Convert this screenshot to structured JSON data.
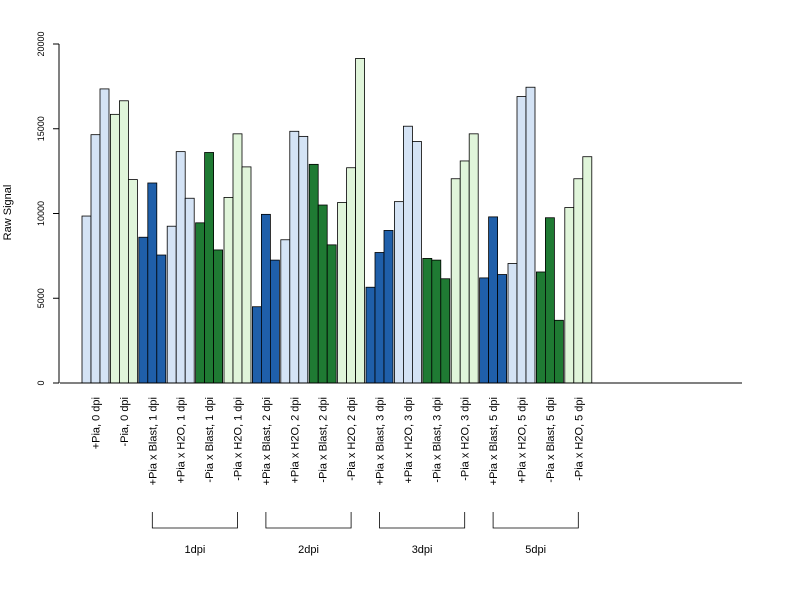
{
  "chart_data": {
    "type": "bar",
    "ylabel": "Raw Signal",
    "ylim": [
      0,
      20000
    ],
    "yticks": [
      0,
      5000,
      10000,
      15000,
      20000
    ],
    "grid": false,
    "bar_colors": {
      "pia_blast": "#1f5faa",
      "pia_h2o": "#d4e3f5",
      "nopia_blast": "#1f7a33",
      "nopia_h2o": "#e0f5da"
    },
    "categories": [
      "+Pia, 0 dpi",
      "-Pia, 0 dpi",
      "+Pia x Blast, 1 dpi",
      "+Pia x H2O, 1 dpi",
      "-Pia x Blast, 1 dpi",
      "-Pia x H2O, 1 dpi",
      "+Pia x Blast, 2 dpi",
      "+Pia x H2O, 2 dpi",
      "-Pia x Blast, 2 dpi",
      "-Pia x H2O, 2 dpi",
      "+Pia x Blast, 3 dpi",
      "+Pia x H2O, 3 dpi",
      "-Pia x Blast, 3 dpi",
      "-Pia x H2O, 3 dpi",
      "+Pia x Blast, 5 dpi",
      "+Pia x H2O, 5 dpi",
      "-Pia x Blast, 5 dpi",
      "-Pia x H2O, 5 dpi"
    ],
    "color_keys": [
      "pia_h2o",
      "nopia_h2o",
      "pia_blast",
      "pia_h2o",
      "nopia_blast",
      "nopia_h2o",
      "pia_blast",
      "pia_h2o",
      "nopia_blast",
      "nopia_h2o",
      "pia_blast",
      "pia_h2o",
      "nopia_blast",
      "nopia_h2o",
      "pia_blast",
      "pia_h2o",
      "nopia_blast",
      "nopia_h2o"
    ],
    "replicates": [
      [
        9850,
        14650,
        17350
      ],
      [
        15850,
        16650,
        12000
      ],
      [
        8600,
        11800,
        7550
      ],
      [
        9250,
        13650,
        10900
      ],
      [
        9450,
        13600,
        7850
      ],
      [
        10950,
        14700,
        12750
      ],
      [
        4500,
        9950,
        7250
      ],
      [
        8450,
        14850,
        14550
      ],
      [
        12900,
        10500,
        8150
      ],
      [
        10650,
        12700,
        19150
      ],
      [
        5650,
        7700,
        9000
      ],
      [
        10700,
        15150,
        14250
      ],
      [
        7350,
        7250,
        6150
      ],
      [
        12050,
        13100,
        14700
      ],
      [
        6200,
        9800,
        6400
      ],
      [
        7050,
        16900,
        17450
      ],
      [
        6550,
        9750,
        3700
      ],
      [
        10350,
        12050,
        13350
      ]
    ],
    "groups": [
      {
        "label": "1dpi",
        "from": 2,
        "to": 5
      },
      {
        "label": "2dpi",
        "from": 6,
        "to": 9
      },
      {
        "label": "3dpi",
        "from": 10,
        "to": 13
      },
      {
        "label": "5dpi",
        "from": 14,
        "to": 17
      }
    ]
  }
}
